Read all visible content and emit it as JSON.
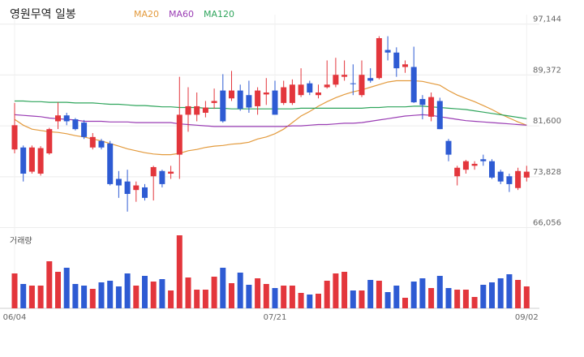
{
  "chart_data": {
    "type": "candlestick",
    "title": "영원무역 일봉",
    "categories": [
      "06/04",
      null,
      null,
      null,
      null,
      null,
      null,
      null,
      null,
      null,
      null,
      null,
      null,
      null,
      null,
      null,
      null,
      null,
      null,
      null,
      null,
      null,
      null,
      null,
      null,
      null,
      null,
      null,
      null,
      null,
      "07/21",
      null,
      null,
      null,
      null,
      null,
      null,
      null,
      null,
      null,
      null,
      null,
      null,
      null,
      null,
      null,
      null,
      null,
      null,
      null,
      null,
      null,
      null,
      null,
      null,
      null,
      null,
      null,
      null,
      "09/02"
    ],
    "open": [
      78000,
      78300,
      74600,
      74300,
      77400,
      82300,
      83200,
      82600,
      82100,
      78300,
      79300,
      78900,
      73500,
      73100,
      71800,
      72200,
      73900,
      74700,
      74300,
      77200,
      83300,
      83300,
      83600,
      85100,
      87000,
      85800,
      87000,
      86300,
      84600,
      86400,
      87000,
      85100,
      85100,
      86300,
      88100,
      86300,
      87500,
      87900,
      89100,
      88100,
      86300,
      88900,
      88900,
      93200,
      92800,
      90600,
      90600,
      85700,
      83000,
      85400,
      79300,
      73900,
      74900,
      75500,
      76500,
      76200,
      74600,
      73900,
      72100,
      73700
    ],
    "high": [
      85100,
      78600,
      78600,
      78500,
      81300,
      85200,
      83600,
      82800,
      82500,
      80500,
      79600,
      79300,
      74700,
      74900,
      73100,
      72700,
      75500,
      74900,
      75500,
      89100,
      87500,
      86700,
      85400,
      87300,
      89500,
      90000,
      87900,
      88500,
      87500,
      88900,
      88500,
      88500,
      88700,
      90400,
      88500,
      87900,
      91600,
      92000,
      91600,
      91000,
      91600,
      90400,
      95300,
      95300,
      93600,
      91600,
      93700,
      86300,
      86700,
      85900,
      79600,
      75500,
      76400,
      76200,
      77200,
      76500,
      74900,
      74300,
      75200,
      75500
    ],
    "low": [
      77400,
      73100,
      74300,
      74000,
      77200,
      81100,
      81700,
      80900,
      79600,
      78000,
      78000,
      72500,
      70600,
      68500,
      70000,
      70200,
      70200,
      72200,
      73500,
      73500,
      80700,
      82300,
      82900,
      84200,
      82100,
      85400,
      83900,
      83600,
      83300,
      84800,
      83300,
      84800,
      84800,
      86000,
      86300,
      85800,
      87300,
      87500,
      88500,
      86300,
      86000,
      88200,
      88700,
      91600,
      89100,
      89700,
      85100,
      82600,
      82300,
      81100,
      76200,
      72500,
      74300,
      74900,
      75500,
      73500,
      72700,
      71500,
      71800,
      73100
    ],
    "close": [
      81700,
      74300,
      78300,
      78200,
      81100,
      83200,
      82300,
      81100,
      79900,
      79900,
      78300,
      72700,
      72500,
      71200,
      72500,
      70600,
      75300,
      72700,
      74600,
      83300,
      84600,
      84600,
      84400,
      85400,
      82300,
      87000,
      84200,
      84400,
      87000,
      86700,
      83300,
      87500,
      87900,
      87900,
      86700,
      86700,
      87900,
      89400,
      89400,
      88000,
      89400,
      88500,
      95000,
      92800,
      90400,
      91000,
      85200,
      84800,
      86000,
      81100,
      77200,
      75200,
      76200,
      75800,
      76200,
      73700,
      73100,
      72700,
      74700,
      74600
    ],
    "up_color": "#e3363c",
    "down_color": "#2e5bd3",
    "series": [
      {
        "name": "MA20",
        "color": "#e39a3c",
        "values": [
          82600,
          81700,
          81100,
          80900,
          80700,
          80600,
          80400,
          80100,
          79900,
          79600,
          79300,
          78900,
          78500,
          78100,
          77800,
          77500,
          77300,
          77200,
          77200,
          77400,
          77800,
          78000,
          78300,
          78500,
          78600,
          78800,
          78900,
          79100,
          79600,
          79900,
          80400,
          81100,
          82100,
          83100,
          83800,
          84600,
          85300,
          85900,
          86400,
          86800,
          87100,
          87500,
          87900,
          88300,
          88500,
          88500,
          88500,
          88400,
          88100,
          87800,
          87000,
          86300,
          85800,
          85300,
          84700,
          84100,
          83400,
          82800,
          82200,
          81700
        ]
      },
      {
        "name": "MA60",
        "color": "#9a3db4",
        "values": [
          83300,
          83200,
          83100,
          83000,
          82800,
          82700,
          82600,
          82500,
          82300,
          82300,
          82300,
          82200,
          82200,
          82200,
          82100,
          82100,
          82100,
          82100,
          82100,
          81900,
          81800,
          81700,
          81600,
          81500,
          81500,
          81500,
          81500,
          81500,
          81500,
          81500,
          81500,
          81500,
          81600,
          81600,
          81700,
          81800,
          81800,
          81900,
          82000,
          82000,
          82100,
          82300,
          82500,
          82700,
          82900,
          83100,
          83200,
          83300,
          83200,
          83000,
          82800,
          82600,
          82400,
          82300,
          82200,
          82100,
          82000,
          81900,
          81800,
          81700
        ]
      },
      {
        "name": "MA120",
        "color": "#2fa55c",
        "values": [
          85400,
          85400,
          85300,
          85300,
          85200,
          85200,
          85200,
          85100,
          85100,
          85100,
          85000,
          84900,
          84900,
          84800,
          84700,
          84700,
          84600,
          84500,
          84500,
          84400,
          84400,
          84400,
          84300,
          84300,
          84300,
          84200,
          84200,
          84200,
          84200,
          84200,
          84200,
          84200,
          84200,
          84300,
          84300,
          84300,
          84300,
          84300,
          84300,
          84300,
          84300,
          84400,
          84400,
          84500,
          84500,
          84500,
          84600,
          84600,
          84500,
          84400,
          84300,
          84200,
          84100,
          83900,
          83700,
          83500,
          83300,
          83100,
          82900,
          82700
        ]
      }
    ],
    "ylim": [
      65500,
      98600
    ],
    "yticks": [
      {
        "value": 97144,
        "label": "97,144"
      },
      {
        "value": 89372,
        "label": "89,372"
      },
      {
        "value": 81600,
        "label": "81,600"
      },
      {
        "value": 73828,
        "label": "73,828"
      },
      {
        "value": 66056,
        "label": "66,056"
      }
    ],
    "grid": true,
    "volume_label": "거래량",
    "volume": [
      43,
      30,
      28,
      28,
      58,
      45,
      50,
      30,
      28,
      24,
      32,
      34,
      27,
      43,
      28,
      40,
      33,
      36,
      22,
      90,
      38,
      23,
      23,
      39,
      50,
      31,
      44,
      29,
      37,
      30,
      25,
      28,
      28,
      19,
      17,
      18,
      34,
      43,
      45,
      22,
      22,
      35,
      34,
      20,
      28,
      13,
      33,
      37,
      25,
      40,
      25,
      23,
      23,
      14,
      29,
      32,
      37,
      42,
      35,
      27
    ]
  }
}
